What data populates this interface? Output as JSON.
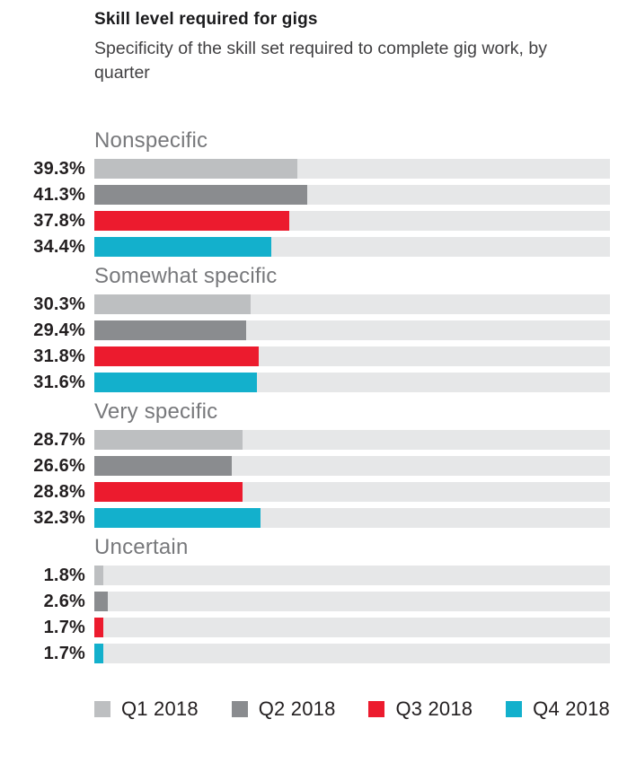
{
  "header": {
    "title": "Skill level required for gigs",
    "subtitle": "Specificity of the skill set required to complete gig work, by quarter"
  },
  "colors": {
    "q1_2018": "#bdbfc1",
    "q2_2018": "#8a8c8f",
    "q3_2018": "#ec1b2e",
    "q4_2018": "#13b0cc",
    "track_background": "#e6e7e8",
    "group_title_text": "#77787b",
    "value_label_text": "#231f20"
  },
  "chart_data": {
    "type": "bar",
    "orientation": "horizontal",
    "title": "Skill level required for gigs",
    "subtitle": "Specificity of the skill set required to complete gig work, by quarter",
    "xlabel": "",
    "ylabel": "",
    "xlim": [
      0,
      100
    ],
    "value_suffix": "%",
    "grid": false,
    "legend_position": "bottom",
    "categories": [
      "Nonspecific",
      "Somewhat specific",
      "Very specific",
      "Uncertain"
    ],
    "series": [
      {
        "name": "Q1 2018",
        "color": "#bdbfc1",
        "values": [
          39.3,
          30.3,
          28.7,
          1.8
        ],
        "labels": [
          "39.3%",
          "30.3%",
          "28.7%",
          "1.8%"
        ]
      },
      {
        "name": "Q2 2018",
        "color": "#8a8c8f",
        "values": [
          41.3,
          29.4,
          26.6,
          2.6
        ],
        "labels": [
          "41.3%",
          "29.4%",
          "26.6%",
          "2.6%"
        ]
      },
      {
        "name": "Q3 2018",
        "color": "#ec1b2e",
        "values": [
          37.8,
          31.8,
          28.8,
          1.7
        ],
        "labels": [
          "37.8%",
          "31.8%",
          "28.8%",
          "1.7%"
        ]
      },
      {
        "name": "Q4 2018",
        "color": "#13b0cc",
        "values": [
          34.4,
          31.6,
          32.3,
          1.7
        ],
        "labels": [
          "34.4%",
          "31.6%",
          "32.3%",
          "1.7%"
        ]
      }
    ]
  },
  "legend": {
    "items": [
      {
        "label": "Q1 2018",
        "color": "#bdbfc1"
      },
      {
        "label": "Q2 2018",
        "color": "#8a8c8f"
      },
      {
        "label": "Q3 2018",
        "color": "#ec1b2e"
      },
      {
        "label": "Q4 2018",
        "color": "#13b0cc"
      }
    ]
  }
}
